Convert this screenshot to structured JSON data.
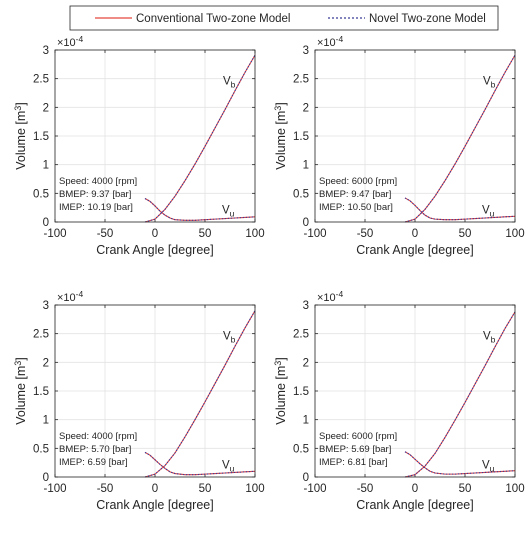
{
  "legend": {
    "items": [
      {
        "label": "Conventional Two-zone Model",
        "color": "#e8473f",
        "dash": "solid"
      },
      {
        "label": "Novel Two-zone Model",
        "color": "#3b3b98",
        "dash": "dotted"
      }
    ]
  },
  "axes_common": {
    "xlabel": "Crank Angle [degree]",
    "ylabel": "Volume [m",
    "ylabel_sup": "3",
    "ylabel_tail": "]",
    "exponent_base": "×10",
    "exponent_power": "-4",
    "xticks": [
      "-100",
      "-50",
      "0",
      "50",
      "100"
    ],
    "yticks": [
      "0",
      "0.5",
      "1",
      "1.5",
      "2",
      "2.5",
      "3"
    ]
  },
  "curve_labels": {
    "vb_main": "V",
    "vb_sub": "b",
    "vu_main": "V",
    "vu_sub": "u"
  },
  "chart_data": [
    {
      "type": "line",
      "xlim": [
        -100,
        100
      ],
      "ylim": [
        0,
        3
      ],
      "y_multiplier": "1e-4",
      "grid": true,
      "annotation": [
        "Speed: 4000 [rpm]",
        "BMEP: 9.37 [bar]",
        "IMEP:  10.19 [bar]"
      ],
      "series": [
        {
          "name": "V_b",
          "x": [
            -10,
            0,
            10,
            20,
            30,
            40,
            50,
            60,
            70,
            80,
            90,
            100
          ],
          "y": [
            0.0,
            0.05,
            0.22,
            0.45,
            0.72,
            1.01,
            1.32,
            1.64,
            1.96,
            2.29,
            2.61,
            2.91
          ]
        },
        {
          "name": "V_u",
          "x": [
            -10,
            -5,
            0,
            5,
            10,
            15,
            20,
            30,
            40,
            50,
            60,
            70,
            80,
            90,
            100
          ],
          "y": [
            0.41,
            0.36,
            0.28,
            0.19,
            0.12,
            0.07,
            0.04,
            0.03,
            0.03,
            0.04,
            0.05,
            0.06,
            0.07,
            0.08,
            0.09
          ]
        }
      ]
    },
    {
      "type": "line",
      "xlim": [
        -100,
        100
      ],
      "ylim": [
        0,
        3
      ],
      "y_multiplier": "1e-4",
      "grid": true,
      "annotation": [
        "Speed: 6000 [rpm]",
        "BMEP: 9.47 [bar]",
        "IMEP:  10.50 [bar]"
      ],
      "series": [
        {
          "name": "V_b",
          "x": [
            -10,
            0,
            10,
            20,
            30,
            40,
            50,
            60,
            70,
            80,
            90,
            100
          ],
          "y": [
            0.0,
            0.05,
            0.22,
            0.45,
            0.72,
            1.01,
            1.32,
            1.64,
            1.96,
            2.29,
            2.61,
            2.91
          ]
        },
        {
          "name": "V_u",
          "x": [
            -10,
            -5,
            0,
            5,
            10,
            15,
            20,
            30,
            40,
            50,
            60,
            70,
            80,
            90,
            100
          ],
          "y": [
            0.42,
            0.37,
            0.29,
            0.2,
            0.12,
            0.07,
            0.05,
            0.04,
            0.04,
            0.05,
            0.06,
            0.07,
            0.08,
            0.09,
            0.1
          ]
        }
      ]
    },
    {
      "type": "line",
      "xlim": [
        -100,
        100
      ],
      "ylim": [
        0,
        3
      ],
      "y_multiplier": "1e-4",
      "grid": true,
      "annotation": [
        "Speed: 4000 [rpm]",
        "BMEP: 5.70 [bar]",
        "IMEP:  6.59 [bar]"
      ],
      "series": [
        {
          "name": "V_b",
          "x": [
            -10,
            0,
            10,
            20,
            30,
            40,
            50,
            60,
            70,
            80,
            90,
            100
          ],
          "y": [
            0.0,
            0.05,
            0.2,
            0.42,
            0.7,
            1.0,
            1.31,
            1.63,
            1.95,
            2.28,
            2.6,
            2.9
          ]
        },
        {
          "name": "V_u",
          "x": [
            -10,
            -5,
            0,
            5,
            10,
            15,
            20,
            30,
            40,
            50,
            60,
            70,
            80,
            90,
            100
          ],
          "y": [
            0.43,
            0.38,
            0.3,
            0.22,
            0.15,
            0.09,
            0.06,
            0.04,
            0.04,
            0.05,
            0.06,
            0.07,
            0.08,
            0.09,
            0.1
          ]
        }
      ]
    },
    {
      "type": "line",
      "xlim": [
        -100,
        100
      ],
      "ylim": [
        0,
        3
      ],
      "y_multiplier": "1e-4",
      "grid": true,
      "annotation": [
        "Speed: 6000 [rpm]",
        "BMEP: 5.69 [bar]",
        "IMEP:  6.81 [bar]"
      ],
      "series": [
        {
          "name": "V_b",
          "x": [
            -10,
            0,
            10,
            20,
            30,
            40,
            50,
            60,
            70,
            80,
            90,
            100
          ],
          "y": [
            0.0,
            0.04,
            0.19,
            0.41,
            0.69,
            0.99,
            1.3,
            1.62,
            1.94,
            2.27,
            2.59,
            2.88
          ]
        },
        {
          "name": "V_u",
          "x": [
            -10,
            -5,
            0,
            5,
            10,
            15,
            20,
            30,
            40,
            50,
            60,
            70,
            80,
            90,
            100
          ],
          "y": [
            0.44,
            0.39,
            0.31,
            0.23,
            0.16,
            0.1,
            0.07,
            0.05,
            0.05,
            0.06,
            0.07,
            0.08,
            0.09,
            0.1,
            0.11
          ]
        }
      ]
    }
  ]
}
